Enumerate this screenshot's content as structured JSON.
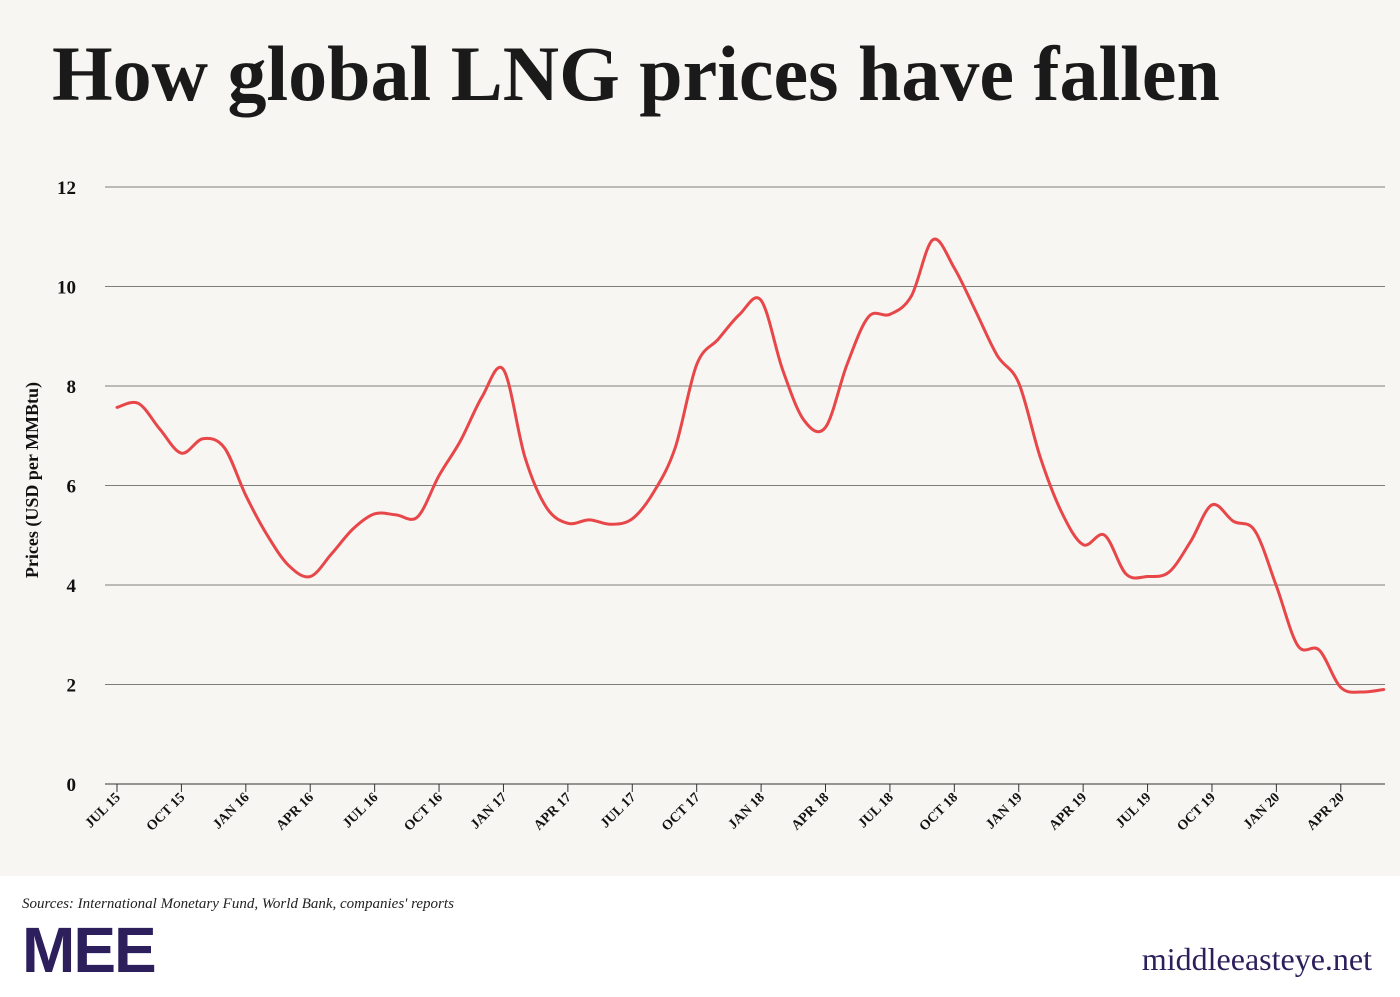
{
  "chart_data": {
    "type": "line",
    "title": "How global LNG prices have fallen",
    "y_label": "Prices (USD per MMBtu)",
    "source": "Sources: International Monetary Fund, World Bank, companies' reports",
    "brand": "MEE",
    "site": "middleeasteye.net",
    "categories": [
      "JUL 15",
      null,
      null,
      "OCT 15",
      null,
      null,
      "JAN 16",
      null,
      null,
      "APR 16",
      null,
      null,
      "JUL 16",
      null,
      null,
      "OCT 16",
      null,
      null,
      "JAN 17",
      null,
      null,
      "APR 17",
      null,
      null,
      "JUL 17",
      null,
      null,
      "OCT 17",
      null,
      null,
      "JAN 18",
      null,
      null,
      "APR 18",
      null,
      null,
      "JUL 18",
      null,
      null,
      "OCT 18",
      null,
      null,
      "JAN 19",
      null,
      null,
      "APR 19",
      null,
      null,
      "JUL 19",
      null,
      null,
      "OCT 19",
      null,
      null,
      "JAN 20",
      null,
      null,
      "APR 20",
      null,
      null
    ],
    "series": [
      {
        "name": "LNG price",
        "color": "#e8474a",
        "values": [
          7.57,
          7.65,
          7.13,
          6.65,
          6.94,
          6.76,
          5.8,
          5.0,
          4.39,
          4.17,
          4.63,
          5.13,
          5.43,
          5.41,
          5.37,
          6.2,
          6.9,
          7.78,
          8.33,
          6.57,
          5.56,
          5.24,
          5.31,
          5.22,
          5.33,
          5.87,
          6.76,
          8.43,
          8.94,
          9.44,
          9.72,
          8.33,
          7.31,
          7.17,
          8.43,
          9.39,
          9.44,
          9.81,
          10.94,
          10.37,
          9.5,
          8.61,
          8.06,
          6.57,
          5.46,
          4.81,
          5.0,
          4.22,
          4.17,
          4.26,
          4.87,
          5.61,
          5.28,
          5.09,
          3.98,
          2.78,
          2.69,
          1.94,
          1.85,
          1.9
        ]
      }
    ],
    "ylim": [
      0,
      12
    ],
    "yticks": [
      0,
      2,
      4,
      6,
      8,
      10,
      12
    ],
    "grid": true
  }
}
